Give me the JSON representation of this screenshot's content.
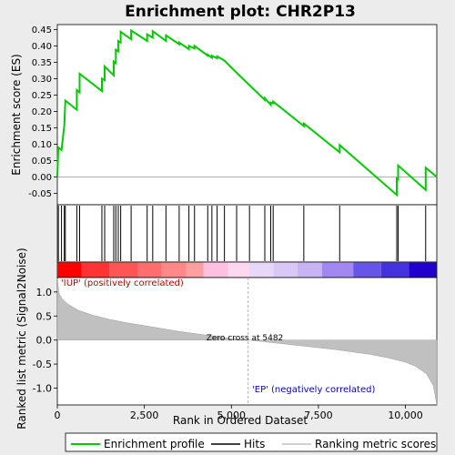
{
  "chart_data": {
    "type": "line",
    "title": "Enrichment plot: CHR2P13",
    "xlabel": "Rank in Ordered Dataset",
    "ylabel_top": "Enrichment score (ES)",
    "ylabel_bottom": "Ranked list metric (Signal2Noise)",
    "xlim": [
      0,
      10900
    ],
    "x_ticks": [
      0,
      2500,
      5000,
      7500,
      10000
    ],
    "x_tick_labels": [
      "0",
      "2,500",
      "5,000",
      "7,500",
      "10,000"
    ],
    "es_ylim": [
      -0.085,
      0.465
    ],
    "es_ticks": [
      -0.05,
      0.0,
      0.05,
      0.1,
      0.15,
      0.2,
      0.25,
      0.3,
      0.35,
      0.4,
      0.45
    ],
    "es_tick_labels": [
      "-0.05",
      "0.00",
      "0.05",
      "0.10",
      "0.15",
      "0.20",
      "0.25",
      "0.30",
      "0.35",
      "0.40",
      "0.45"
    ],
    "metric_ylim": [
      -1.35,
      1.3
    ],
    "metric_ticks": [
      1.0,
      0.5,
      0.0,
      -0.5,
      -1.0
    ],
    "metric_tick_labels": [
      "1.0",
      "0.5",
      "0.0",
      "-0.5",
      "-1.0"
    ],
    "zero_cross_rank": 5482,
    "annotations": {
      "zero_cross": "Zero cross at 5482",
      "positive": "'IUP' (positively correlated)",
      "negative": "'EP' (negatively correlated)"
    },
    "legend": {
      "enrichment": "Enrichment profile",
      "hits": "Hits",
      "ranking": "Ranking metric scores"
    },
    "colors": {
      "enrichment_line": "#00cc00",
      "hits": "#000000",
      "metric_fill": "#c0c0c0",
      "zero_cross_line": "#a0a0a0",
      "positive_text": "#cc0000",
      "negative_text": "#0000cc",
      "background": "#ececec"
    },
    "hits": [
      30,
      120,
      200,
      230,
      560,
      640,
      1280,
      1360,
      1620,
      1680,
      1750,
      1820,
      2120,
      2580,
      2740,
      3120,
      3500,
      3780,
      3940,
      4320,
      4440,
      4590,
      4800,
      5150,
      5520,
      5960,
      6130,
      6200,
      7080,
      8110,
      9750,
      9790,
      10580
    ],
    "es_series": [
      {
        "x": 0,
        "y": 0.0
      },
      {
        "x": 30,
        "y": 0.09
      },
      {
        "x": 120,
        "y": 0.082
      },
      {
        "x": 200,
        "y": 0.158
      },
      {
        "x": 230,
        "y": 0.233
      },
      {
        "x": 560,
        "y": 0.205
      },
      {
        "x": 560,
        "y": 0.265
      },
      {
        "x": 640,
        "y": 0.258
      },
      {
        "x": 640,
        "y": 0.315
      },
      {
        "x": 1280,
        "y": 0.262
      },
      {
        "x": 1280,
        "y": 0.3
      },
      {
        "x": 1360,
        "y": 0.295
      },
      {
        "x": 1360,
        "y": 0.337
      },
      {
        "x": 1620,
        "y": 0.31
      },
      {
        "x": 1620,
        "y": 0.352
      },
      {
        "x": 1680,
        "y": 0.347
      },
      {
        "x": 1680,
        "y": 0.388
      },
      {
        "x": 1750,
        "y": 0.383
      },
      {
        "x": 1750,
        "y": 0.415
      },
      {
        "x": 1820,
        "y": 0.41
      },
      {
        "x": 1820,
        "y": 0.443
      },
      {
        "x": 2120,
        "y": 0.42
      },
      {
        "x": 2120,
        "y": 0.447
      },
      {
        "x": 2580,
        "y": 0.415
      },
      {
        "x": 2580,
        "y": 0.435
      },
      {
        "x": 2740,
        "y": 0.425
      },
      {
        "x": 2740,
        "y": 0.445
      },
      {
        "x": 3120,
        "y": 0.415
      },
      {
        "x": 3120,
        "y": 0.432
      },
      {
        "x": 3500,
        "y": 0.405
      },
      {
        "x": 3500,
        "y": 0.41
      },
      {
        "x": 3780,
        "y": 0.39
      },
      {
        "x": 3780,
        "y": 0.4
      },
      {
        "x": 3940,
        "y": 0.392
      },
      {
        "x": 3940,
        "y": 0.4
      },
      {
        "x": 4320,
        "y": 0.37
      },
      {
        "x": 4320,
        "y": 0.373
      },
      {
        "x": 4440,
        "y": 0.364
      },
      {
        "x": 4440,
        "y": 0.37
      },
      {
        "x": 4590,
        "y": 0.362
      },
      {
        "x": 4590,
        "y": 0.368
      },
      {
        "x": 4800,
        "y": 0.355
      },
      {
        "x": 5150,
        "y": 0.318
      },
      {
        "x": 5520,
        "y": 0.28
      },
      {
        "x": 5960,
        "y": 0.235
      },
      {
        "x": 5960,
        "y": 0.24
      },
      {
        "x": 6130,
        "y": 0.22
      },
      {
        "x": 6130,
        "y": 0.227
      },
      {
        "x": 6200,
        "y": 0.225
      },
      {
        "x": 6200,
        "y": 0.23
      },
      {
        "x": 7080,
        "y": 0.155
      },
      {
        "x": 7080,
        "y": 0.163
      },
      {
        "x": 8110,
        "y": 0.075
      },
      {
        "x": 8110,
        "y": 0.097
      },
      {
        "x": 9750,
        "y": -0.055
      },
      {
        "x": 9750,
        "y": -0.005
      },
      {
        "x": 9790,
        "y": -0.008
      },
      {
        "x": 9790,
        "y": 0.035
      },
      {
        "x": 10580,
        "y": -0.04
      },
      {
        "x": 10580,
        "y": 0.028
      },
      {
        "x": 10900,
        "y": 0.0
      }
    ],
    "metric_series": [
      {
        "x": 0,
        "y": 1.28
      },
      {
        "x": 50,
        "y": 0.97
      },
      {
        "x": 150,
        "y": 0.85
      },
      {
        "x": 300,
        "y": 0.75
      },
      {
        "x": 600,
        "y": 0.62
      },
      {
        "x": 1000,
        "y": 0.52
      },
      {
        "x": 1500,
        "y": 0.43
      },
      {
        "x": 2000,
        "y": 0.36
      },
      {
        "x": 2500,
        "y": 0.3
      },
      {
        "x": 3000,
        "y": 0.24
      },
      {
        "x": 3500,
        "y": 0.18
      },
      {
        "x": 4000,
        "y": 0.13
      },
      {
        "x": 4500,
        "y": 0.08
      },
      {
        "x": 5000,
        "y": 0.03
      },
      {
        "x": 5482,
        "y": 0.0
      },
      {
        "x": 6000,
        "y": -0.04
      },
      {
        "x": 6500,
        "y": -0.08
      },
      {
        "x": 7000,
        "y": -0.12
      },
      {
        "x": 7500,
        "y": -0.16
      },
      {
        "x": 8000,
        "y": -0.2
      },
      {
        "x": 8500,
        "y": -0.25
      },
      {
        "x": 9000,
        "y": -0.3
      },
      {
        "x": 9500,
        "y": -0.37
      },
      {
        "x": 10000,
        "y": -0.46
      },
      {
        "x": 10300,
        "y": -0.55
      },
      {
        "x": 10600,
        "y": -0.7
      },
      {
        "x": 10800,
        "y": -0.95
      },
      {
        "x": 10900,
        "y": -1.35
      }
    ],
    "colorbar": [
      {
        "from": 0,
        "to": 700,
        "color": "#ff0000"
      },
      {
        "from": 700,
        "to": 1500,
        "color": "#ff3333"
      },
      {
        "from": 1500,
        "to": 2300,
        "color": "#ff5555"
      },
      {
        "from": 2300,
        "to": 3000,
        "color": "#ff6e6e"
      },
      {
        "from": 3000,
        "to": 3700,
        "color": "#ff8888"
      },
      {
        "from": 3700,
        "to": 4200,
        "color": "#ffa0a0"
      },
      {
        "from": 4200,
        "to": 4900,
        "color": "#ffc0e0"
      },
      {
        "from": 4900,
        "to": 5500,
        "color": "#ffd8f0"
      },
      {
        "from": 5500,
        "to": 6200,
        "color": "#e8d8f8"
      },
      {
        "from": 6200,
        "to": 6900,
        "color": "#d8c8f8"
      },
      {
        "from": 6900,
        "to": 7600,
        "color": "#c8b4f4"
      },
      {
        "from": 7600,
        "to": 8500,
        "color": "#a088f0"
      },
      {
        "from": 8500,
        "to": 9300,
        "color": "#6655e6"
      },
      {
        "from": 9300,
        "to": 10100,
        "color": "#4433dd"
      },
      {
        "from": 10100,
        "to": 10900,
        "color": "#2200cc"
      }
    ]
  }
}
